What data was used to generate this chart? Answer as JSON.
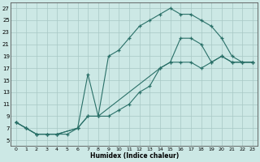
{
  "xlabel": "Humidex (Indice chaleur)",
  "background_color": "#cce8e5",
  "line_color": "#2a7068",
  "xlim": [
    -0.5,
    23.5
  ],
  "ylim": [
    4.0,
    28.0
  ],
  "yticks": [
    5,
    7,
    9,
    11,
    13,
    15,
    17,
    19,
    21,
    23,
    25,
    27
  ],
  "xticks": [
    0,
    1,
    2,
    3,
    4,
    5,
    6,
    7,
    8,
    9,
    10,
    11,
    12,
    13,
    14,
    15,
    16,
    17,
    18,
    19,
    20,
    21,
    22,
    23
  ],
  "line1_x": [
    0,
    1,
    2,
    3,
    4,
    5,
    6,
    7,
    8,
    9,
    10,
    11,
    12,
    13,
    14,
    15,
    16,
    17,
    18,
    19,
    20,
    21,
    22,
    23
  ],
  "line1_y": [
    8,
    7,
    6,
    6,
    6,
    6,
    7,
    16,
    9,
    19,
    20,
    22,
    24,
    25,
    26,
    27,
    26,
    26,
    25,
    24,
    22,
    19,
    18,
    18
  ],
  "line2_x": [
    0,
    1,
    2,
    3,
    4,
    6,
    7,
    8,
    9,
    10,
    11,
    12,
    13,
    14,
    15,
    16,
    17,
    18,
    19,
    20,
    21,
    22,
    23
  ],
  "line2_y": [
    8,
    7,
    6,
    6,
    6,
    7,
    9,
    9,
    9,
    10,
    11,
    13,
    14,
    17,
    18,
    18,
    18,
    17,
    18,
    19,
    18,
    18,
    18
  ],
  "line3_x": [
    0,
    1,
    2,
    3,
    4,
    6,
    7,
    8,
    14,
    15,
    16,
    17,
    18,
    19,
    20,
    21,
    22,
    23
  ],
  "line3_y": [
    8,
    7,
    6,
    6,
    6,
    7,
    9,
    9,
    17,
    18,
    22,
    22,
    21,
    18,
    19,
    18,
    18,
    18
  ]
}
